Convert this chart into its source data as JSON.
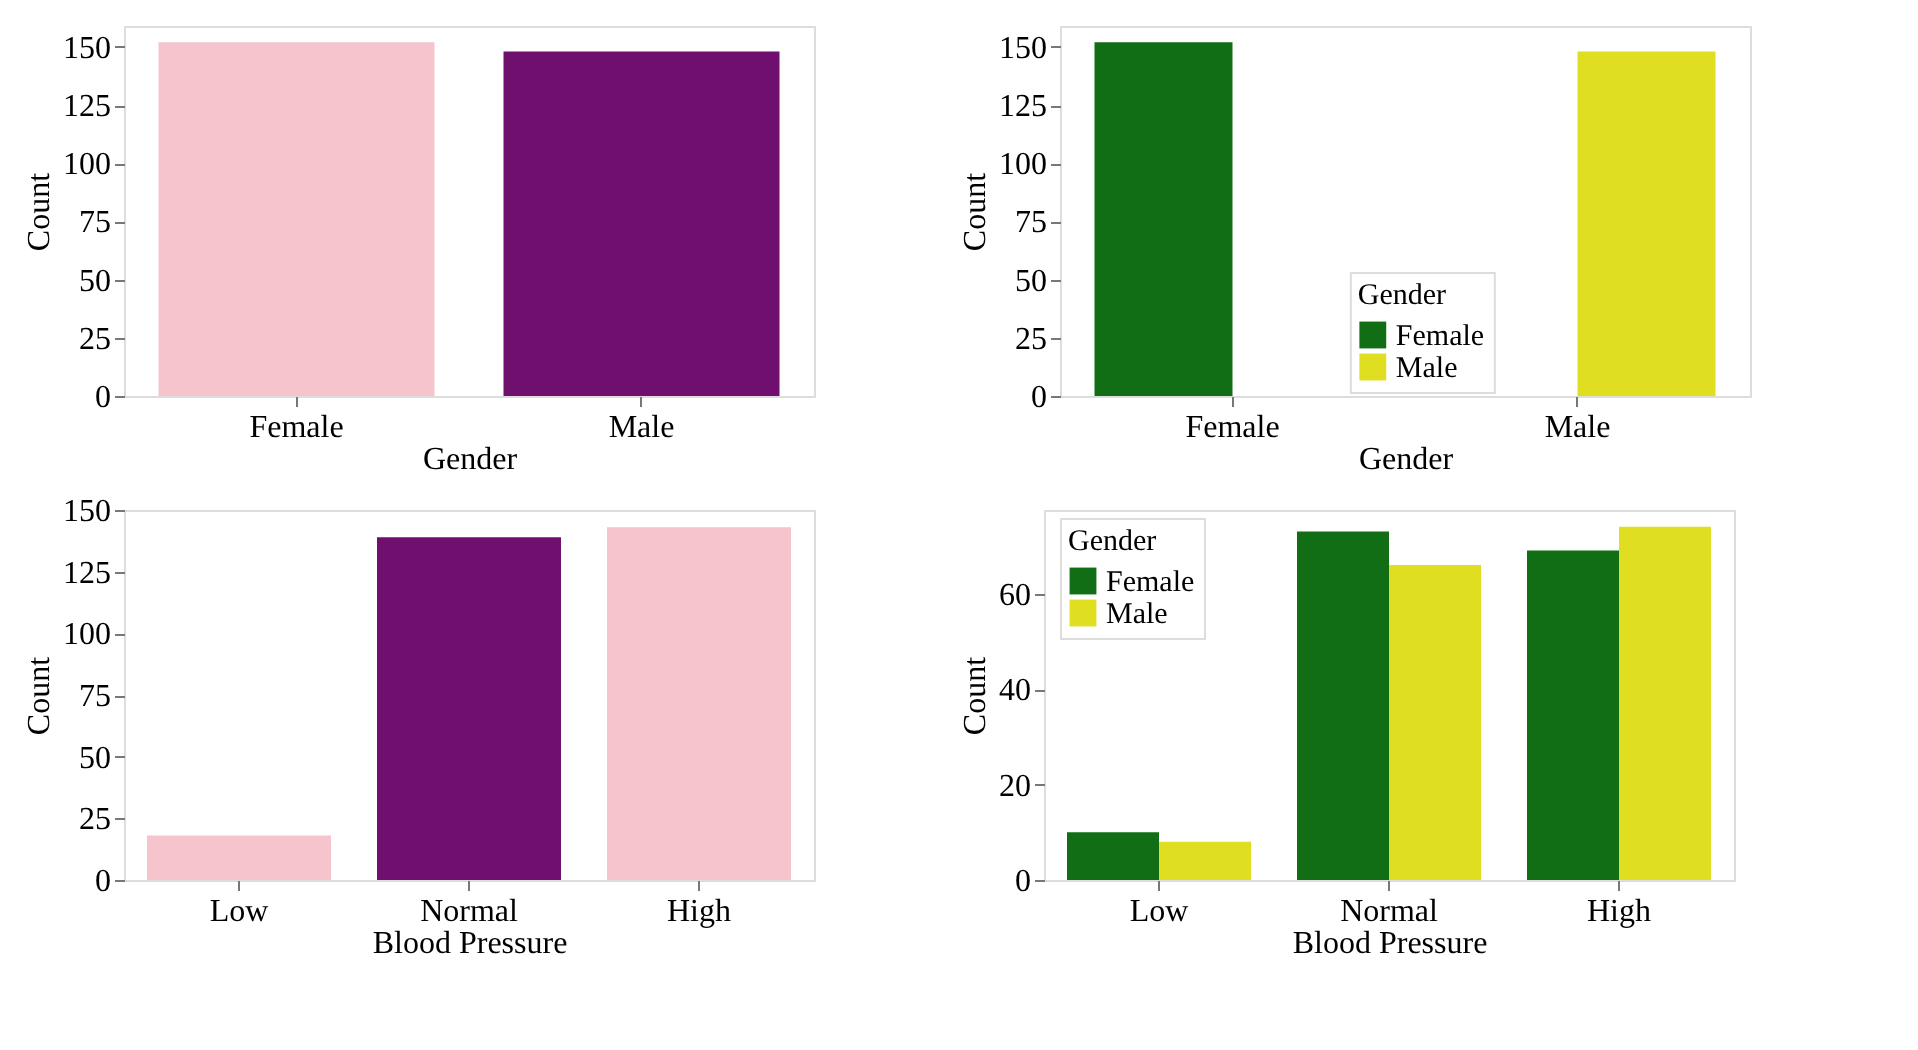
{
  "chart_data": [
    {
      "type": "bar",
      "xlabel": "Gender",
      "ylabel": "Count",
      "categories": [
        "Female",
        "Male"
      ],
      "values": [
        152,
        148
      ],
      "colors": [
        "#f5c4cc",
        "#6f0f6e"
      ],
      "ylim": [
        0,
        159
      ],
      "yticks": [
        0,
        25,
        50,
        75,
        100,
        125,
        150
      ],
      "grid": false,
      "legend": false
    },
    {
      "type": "bar",
      "xlabel": "Gender",
      "ylabel": "Count",
      "legend_title": "Gender",
      "categories": [
        "Female",
        "Male"
      ],
      "series": [
        {
          "name": "Female",
          "color": "#116e14",
          "values": [
            152,
            null
          ]
        },
        {
          "name": "Male",
          "color": "#e0de20",
          "values": [
            null,
            148
          ]
        }
      ],
      "ylim": [
        0,
        159
      ],
      "yticks": [
        0,
        25,
        50,
        75,
        100,
        125,
        150
      ],
      "grid": false,
      "legend": "bottom"
    },
    {
      "type": "bar",
      "xlabel": "Blood Pressure",
      "ylabel": "Count",
      "categories": [
        "Low",
        "Normal",
        "High"
      ],
      "values": [
        18,
        139,
        143
      ],
      "colors": [
        "#f5c4cc",
        "#6f0f6e",
        "#f5c4cc"
      ],
      "ylim": [
        0,
        150
      ],
      "yticks": [
        0,
        25,
        50,
        75,
        100,
        125,
        150
      ],
      "grid": false,
      "legend": false
    },
    {
      "type": "bar",
      "xlabel": "Blood Pressure",
      "ylabel": "Count",
      "legend_title": "Gender",
      "categories": [
        "Low",
        "Normal",
        "High"
      ],
      "series": [
        {
          "name": "Female",
          "color": "#116e14",
          "values": [
            10,
            73,
            69
          ]
        },
        {
          "name": "Male",
          "color": "#e0de20",
          "values": [
            8,
            66,
            74
          ]
        }
      ],
      "ylim": [
        0,
        77.5
      ],
      "yticks": [
        0,
        20,
        40,
        60
      ],
      "grid": false,
      "legend": "top left"
    }
  ]
}
